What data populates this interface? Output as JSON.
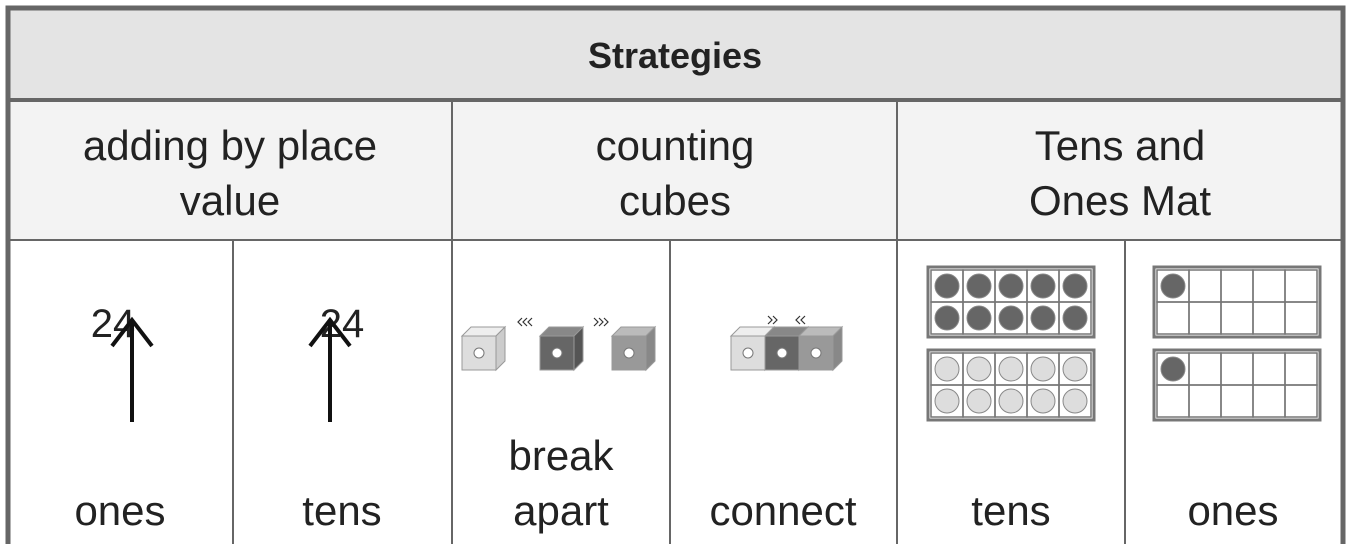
{
  "header": {
    "title": "Strategies"
  },
  "table": {
    "groups": [
      {
        "lines": [
          "adding by place",
          "value"
        ]
      },
      {
        "lines": [
          "counting",
          "cubes"
        ]
      },
      {
        "lines": [
          "Tens and",
          "Ones Mat"
        ]
      }
    ],
    "cells": [
      {
        "number": "24",
        "lines": [
          "ones"
        ]
      },
      {
        "number": "24",
        "lines": [
          "tens"
        ]
      },
      {
        "lines": [
          "break",
          "apart"
        ]
      },
      {
        "lines": [
          "connect"
        ]
      },
      {
        "lines": [
          "tens"
        ]
      },
      {
        "lines": [
          "ones"
        ]
      }
    ]
  }
}
